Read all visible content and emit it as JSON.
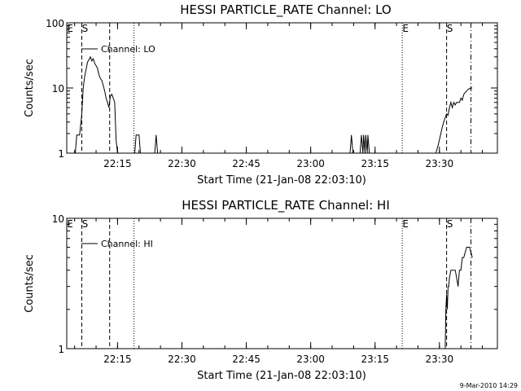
{
  "chart_data": [
    {
      "type": "line",
      "title": "HESSI PARTICLE_RATE Channel: LO",
      "xlabel": "Start Time (21-Jan-08 22:03:10)",
      "ylabel": "Counts/sec",
      "yscale": "log",
      "ylim": [
        1,
        100
      ],
      "xlim": [
        "22:03:10",
        "23:43:30"
      ],
      "x_ticks": [
        "22:15",
        "22:30",
        "22:45",
        "23:00",
        "23:15",
        "23:30"
      ],
      "y_ticks": [
        "1",
        "10",
        "100"
      ],
      "legend": "Channel: LO",
      "markers": [
        {
          "label": "E",
          "time": "22:03:10",
          "style": "dotted"
        },
        {
          "label": "S",
          "time": "22:06:40",
          "style": "dashed"
        },
        {
          "label": "",
          "time": "22:13:10",
          "style": "dashed"
        },
        {
          "label": "",
          "time": "22:18:50",
          "style": "dotted"
        },
        {
          "label": "E",
          "time": "23:21:20",
          "style": "dotted"
        },
        {
          "label": "S",
          "time": "23:31:40",
          "style": "dashed"
        },
        {
          "label": "",
          "time": "23:37:20",
          "style": "dashdot"
        }
      ],
      "series": [
        {
          "segments": [
            {
              "x": [
                "22:05:10",
                "22:05:30",
                "22:06:10",
                "22:06:40",
                "22:07:00",
                "22:07:20",
                "22:07:40",
                "22:08:00",
                "22:08:20",
                "22:08:40",
                "22:09:00",
                "22:09:20",
                "22:09:40",
                "22:10:00",
                "22:10:20",
                "22:10:40",
                "22:11:00",
                "22:11:20",
                "22:11:40",
                "22:12:00",
                "22:12:20",
                "22:12:40",
                "22:13:00",
                "22:13:20",
                "22:13:40",
                "22:14:00",
                "22:14:20",
                "22:14:40",
                "22:15:00"
              ],
              "y": [
                1,
                1.9,
                1.9,
                4,
                10,
                15,
                19,
                25,
                27,
                30,
                26,
                28,
                24,
                22,
                20,
                16,
                14,
                13,
                11,
                9,
                7,
                6,
                5,
                7.5,
                8,
                7,
                6,
                1.6,
                1
              ]
            },
            {
              "x": [
                "22:19:00",
                "22:19:20",
                "22:19:40",
                "22:20:00",
                "22:20:20"
              ],
              "y": [
                1,
                1.9,
                1.9,
                1.9,
                1
              ]
            },
            {
              "x": [
                "22:23:40",
                "22:24:00",
                "22:24:20"
              ],
              "y": [
                1,
                1.9,
                1
              ]
            },
            {
              "x": [
                "23:09:10",
                "23:09:30",
                "23:09:50"
              ],
              "y": [
                1,
                1.9,
                1
              ]
            },
            {
              "x": [
                "23:11:30",
                "23:11:50",
                "23:12:10",
                "23:12:20",
                "23:12:40",
                "23:12:50",
                "23:13:10",
                "23:13:20",
                "23:13:40"
              ],
              "y": [
                1,
                1.9,
                1,
                1.9,
                1,
                1.9,
                1,
                1.9,
                1
              ]
            },
            {
              "x": [
                "23:29:10",
                "23:29:40",
                "23:30:10",
                "23:30:40",
                "23:31:00",
                "23:31:20",
                "23:31:40",
                "23:32:00",
                "23:32:20",
                "23:32:40",
                "23:33:00",
                "23:33:20",
                "23:33:40",
                "23:34:00",
                "23:34:20",
                "23:34:40",
                "23:35:00",
                "23:35:20",
                "23:35:40",
                "23:36:00",
                "23:36:20",
                "23:36:40",
                "23:37:00",
                "23:37:20",
                "23:37:40"
              ],
              "y": [
                1,
                1.3,
                1.8,
                2.5,
                3,
                3.5,
                4,
                3.8,
                5,
                6,
                5,
                6,
                5.5,
                6,
                6,
                6,
                7,
                6.5,
                8,
                8.5,
                9,
                9.5,
                9.8,
                10,
                10
              ]
            }
          ]
        }
      ]
    },
    {
      "type": "line",
      "title": "HESSI PARTICLE_RATE Channel: HI",
      "xlabel": "Start Time (21-Jan-08 22:03:10)",
      "ylabel": "Counts/sec",
      "yscale": "log",
      "ylim": [
        1,
        10
      ],
      "xlim": [
        "22:03:10",
        "23:43:30"
      ],
      "x_ticks": [
        "22:15",
        "22:30",
        "22:45",
        "23:00",
        "23:15",
        "23:30"
      ],
      "y_ticks": [
        "1",
        "10"
      ],
      "legend": "Channel: HI",
      "markers": [
        {
          "label": "E",
          "time": "22:03:10",
          "style": "dotted"
        },
        {
          "label": "S",
          "time": "22:06:40",
          "style": "dashed"
        },
        {
          "label": "",
          "time": "22:13:10",
          "style": "dashed"
        },
        {
          "label": "",
          "time": "22:18:50",
          "style": "dotted"
        },
        {
          "label": "E",
          "time": "23:21:20",
          "style": "dotted"
        },
        {
          "label": "S",
          "time": "23:31:40",
          "style": "dashed"
        },
        {
          "label": "",
          "time": "23:37:20",
          "style": "dashdot"
        }
      ],
      "series": [
        {
          "segments": [
            {
              "x": [
                "23:31:20",
                "23:31:30",
                "23:31:40",
                "23:31:50",
                "23:32:00",
                "23:32:10",
                "23:32:20",
                "23:32:40",
                "23:33:00",
                "23:33:20",
                "23:33:40",
                "23:34:00",
                "23:34:20",
                "23:34:40",
                "23:35:00",
                "23:35:20",
                "23:35:40",
                "23:36:00",
                "23:36:20",
                "23:36:40",
                "23:37:00",
                "23:37:20",
                "23:37:40"
              ],
              "y": [
                1,
                2,
                2.6,
                2,
                3,
                3,
                3.5,
                4,
                4,
                4,
                4,
                3.5,
                3,
                4,
                4,
                5,
                5,
                5.5,
                6,
                6,
                6,
                5.5,
                5
              ]
            }
          ]
        }
      ]
    }
  ],
  "timestamp": "9-Mar-2010 14:29"
}
